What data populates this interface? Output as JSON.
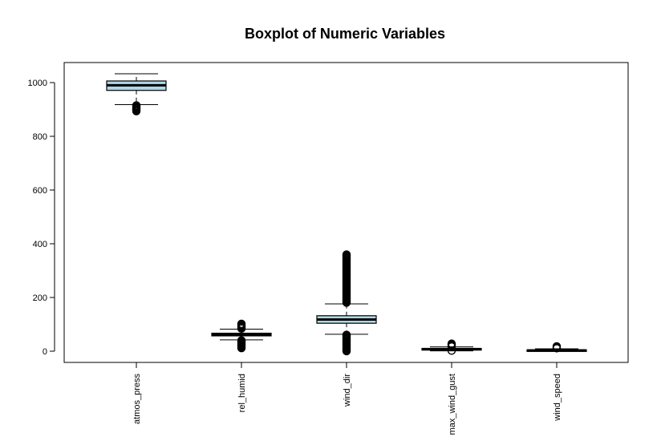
{
  "chart_data": {
    "type": "boxplot",
    "title": "Boxplot of Numeric Variables",
    "xlabel": "",
    "ylabel": "",
    "ylim": [
      -40,
      1040
    ],
    "yticks": [
      0,
      200,
      400,
      600,
      800,
      1000
    ],
    "box_color": "#add8e6",
    "categories": [
      "atmos_press",
      "rel_humid",
      "wind_dir",
      "max_wind_gust",
      "wind_speed"
    ],
    "boxes": [
      {
        "name": "atmos_press",
        "whisker_low": 918,
        "q1": 971,
        "median": 990,
        "q3": 1006,
        "whisker_high": 1033,
        "outlier_min": 890,
        "outlier_max": 915
      },
      {
        "name": "rel_humid",
        "whisker_low": 42,
        "q1": 57,
        "median": 62,
        "q3": 67,
        "whisker_high": 82,
        "outlier_min": 10,
        "outlier_max": 102,
        "outlier_gap": [
          40,
          84
        ]
      },
      {
        "name": "wind_dir",
        "whisker_low": 63,
        "q1": 104,
        "median": 118,
        "q3": 132,
        "whisker_high": 176,
        "outlier_min": 0,
        "outlier_max": 360,
        "outlier_gap": [
          61,
          178
        ]
      },
      {
        "name": "max_wind_gust",
        "whisker_low": 1,
        "q1": 6,
        "median": 8,
        "q3": 10,
        "whisker_high": 16,
        "outlier_min": 0,
        "outlier_max": 28,
        "outlier_gap": [
          2,
          15
        ]
      },
      {
        "name": "wind_speed",
        "whisker_low": 0,
        "q1": 2,
        "median": 3,
        "q3": 5,
        "whisker_high": 9,
        "outlier_min": 0,
        "outlier_max": 18,
        "outlier_gap": [
          0,
          9
        ]
      }
    ]
  }
}
